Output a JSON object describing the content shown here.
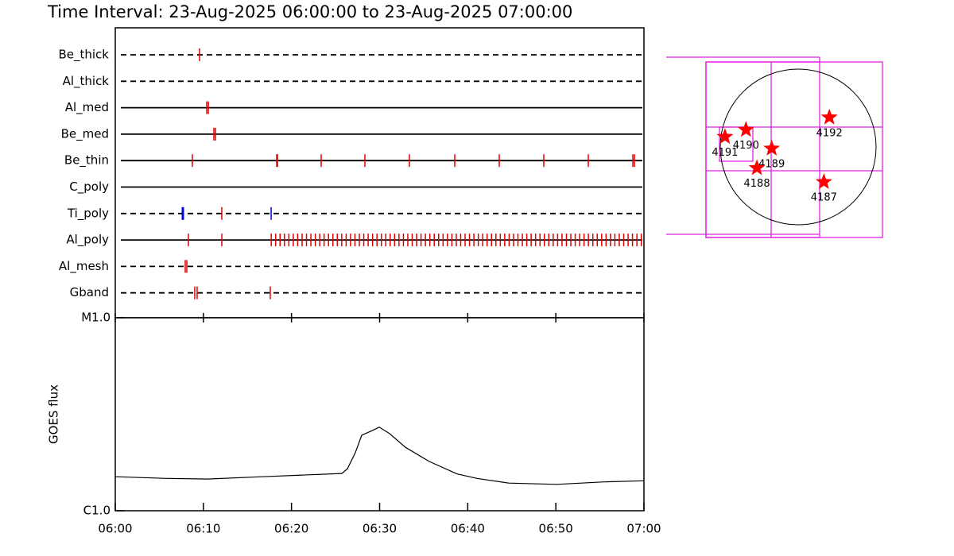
{
  "title": "Time Interval: 23-Aug-2025 06:00:00 to 23-Aug-2025 07:00:00",
  "chart_data": [
    {
      "type": "timeline",
      "xlim": [
        0,
        60
      ],
      "rows": [
        {
          "name": "Be_thick",
          "line": "dashed",
          "color": "#e00000",
          "x": [
            9.56
          ]
        },
        {
          "name": "Al_thick",
          "line": "dashed",
          "color": "#e00000",
          "x": []
        },
        {
          "name": "Al_med",
          "line": "solid",
          "color": "#e00000",
          "x": [
            10.38,
            10.56
          ]
        },
        {
          "name": "Be_med",
          "line": "solid",
          "color": "#e00000",
          "x": [
            11.19,
            11.37
          ]
        },
        {
          "name": "Be_thin",
          "line": "solid",
          "color": "#e00000",
          "x": [
            8.75,
            18.32,
            18.41,
            23.37,
            28.33,
            33.38,
            38.53,
            43.58,
            48.63,
            53.69,
            58.74,
            58.92
          ]
        },
        {
          "name": "C_poly",
          "line": "solid",
          "color": "#e00000",
          "x": []
        },
        {
          "name": "Ti_poly",
          "line": "dashed",
          "colors": [
            "#0000e0",
            "#e00000",
            "#0000e0"
          ],
          "x": [
            7.67,
            12.09,
            17.69
          ]
        },
        {
          "name": "Al_poly",
          "line": "solid",
          "color": "#e00000",
          "x": [
            8.3,
            12.09,
            17.7,
            18.2,
            18.7,
            19.2,
            19.7,
            20.2,
            20.7,
            21.2,
            21.7,
            22.2,
            22.7,
            23.2,
            23.7,
            24.2,
            24.7,
            25.2,
            25.7,
            26.2,
            26.7,
            27.2,
            27.7,
            28.2,
            28.7,
            29.2,
            29.7,
            30.2,
            30.7,
            31.2,
            31.7,
            32.2,
            32.7,
            33.2,
            33.7,
            34.2,
            34.7,
            35.2,
            35.7,
            36.2,
            36.7,
            37.2,
            37.7,
            38.2,
            38.7,
            39.2,
            39.7,
            40.2,
            40.7,
            41.2,
            41.7,
            42.2,
            42.7,
            43.2,
            43.7,
            44.2,
            44.7,
            45.2,
            45.7,
            46.2,
            46.7,
            47.2,
            47.7,
            48.2,
            48.7,
            49.2,
            49.7,
            50.2,
            50.7,
            51.2,
            51.7,
            52.2,
            52.7,
            53.2,
            53.7,
            54.2,
            54.7,
            55.2,
            55.7,
            56.2,
            56.7,
            57.2,
            57.7,
            58.2,
            58.7,
            59.2,
            59.7
          ]
        },
        {
          "name": "Al_mesh",
          "line": "dashed",
          "color": "#e00000",
          "x": [
            7.94,
            8.12
          ]
        },
        {
          "name": "Gband",
          "line": "dashed",
          "color": "#e00000",
          "x": [
            9.02,
            9.29,
            17.59
          ]
        }
      ]
    },
    {
      "type": "line",
      "ylabel": "GOES flux",
      "log_y": true,
      "color": "#000000",
      "xlim": [
        0,
        60
      ],
      "xticks": [
        {
          "value": 0,
          "label": "06:00"
        },
        {
          "value": 10,
          "label": "06:10"
        },
        {
          "value": 20,
          "label": "06:20"
        },
        {
          "value": 30,
          "label": "06:30"
        },
        {
          "value": 40,
          "label": "06:40"
        },
        {
          "value": 50,
          "label": "06:50"
        },
        {
          "value": 60,
          "label": "07:00"
        }
      ],
      "ylim": [
        1e-06,
        1e-05
      ],
      "yticks": [
        {
          "value": 1e-06,
          "label": "C1.0"
        },
        {
          "value": 1e-05,
          "label": "M1.0"
        }
      ],
      "x": [
        0,
        5.86,
        10.38,
        16.69,
        21.2,
        25.71,
        26.35,
        27.25,
        27.97,
        29.14,
        29.96,
        31.13,
        32.93,
        35.64,
        38.8,
        41.05,
        44.66,
        50.08,
        55.49,
        60
      ],
      "values": [
        1.5e-06,
        1.47e-06,
        1.46e-06,
        1.5e-06,
        1.53e-06,
        1.56e-06,
        1.65e-06,
        2e-06,
        2.46e-06,
        2.6e-06,
        2.71e-06,
        2.51e-06,
        2.13e-06,
        1.8e-06,
        1.55e-06,
        1.47e-06,
        1.39e-06,
        1.37e-06,
        1.41e-06,
        1.43e-06
      ]
    },
    {
      "type": "map",
      "color": "#ff0000",
      "labels": [
        "4192",
        "4190",
        "4191",
        "4189",
        "4188",
        "4187"
      ],
      "x": [
        0.4,
        -0.67,
        -0.94,
        -0.34,
        -0.53,
        0.33
      ],
      "values": [
        0.38,
        0.22,
        0.13,
        -0.02,
        -0.27,
        -0.45
      ]
    }
  ]
}
